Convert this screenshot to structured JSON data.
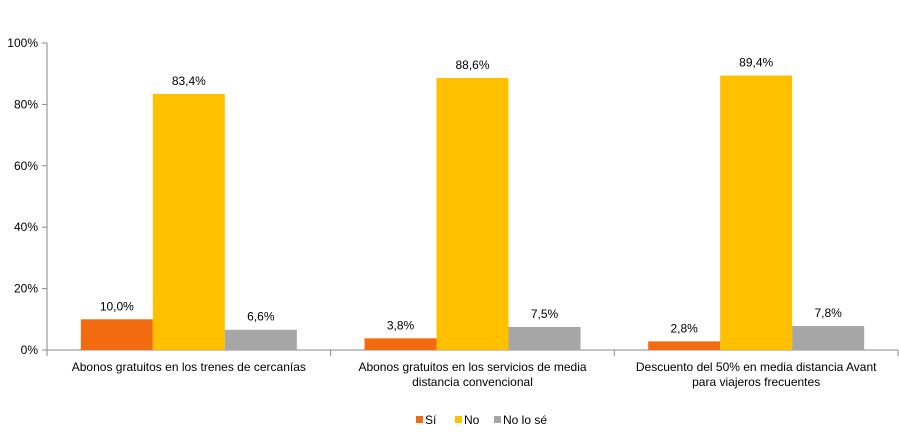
{
  "chart_data": {
    "type": "bar",
    "title": "",
    "xlabel": "",
    "ylabel": "",
    "ylim": [
      0,
      100
    ],
    "yticks": [
      "0%",
      "20%",
      "40%",
      "60%",
      "80%",
      "100%"
    ],
    "grid": false,
    "legend_position": "bottom",
    "categories": [
      [
        "Abonos gratuitos en los trenes de cercanías"
      ],
      [
        "Abonos gratuitos en los servicios de media",
        "distancia convencional"
      ],
      [
        "Descuento del 50% en media distancia Avant",
        "para viajeros frecuentes"
      ]
    ],
    "series": [
      {
        "name": "Sí",
        "color": "#F26B0F",
        "values": [
          10.0,
          3.8,
          2.8
        ],
        "labels": [
          "10,0%",
          "3,8%",
          "2,8%"
        ]
      },
      {
        "name": "No",
        "color": "#FFC000",
        "values": [
          83.4,
          88.6,
          89.4
        ],
        "labels": [
          "83,4%",
          "88,6%",
          "89,4%"
        ]
      },
      {
        "name": "No lo sé",
        "color": "#A6A6A6",
        "values": [
          6.6,
          7.5,
          7.8
        ],
        "labels": [
          "6,6%",
          "7,5%",
          "7,8%"
        ]
      }
    ]
  }
}
